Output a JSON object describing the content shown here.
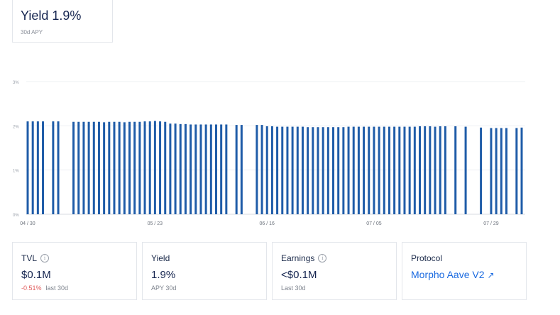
{
  "header": {
    "yield_title": "Yield 1.9%",
    "yield_sub": "30d APY"
  },
  "stats": {
    "tvl": {
      "label": "TVL",
      "value": "$0.1M",
      "change": "-0.51%",
      "period": "last 30d"
    },
    "yield": {
      "label": "Yield",
      "value": "1.9%",
      "sub": "APY 30d"
    },
    "earnings": {
      "label": "Earnings",
      "value": "<$0.1M",
      "sub": "Last 30d"
    },
    "protocol": {
      "label": "Protocol",
      "value": "Morpho Aave V2",
      "icon": "external-link-arrow-icon"
    }
  },
  "colors": {
    "bar": "#1f5ca8",
    "grid": "#eef0f3",
    "negative": "#e05a5a",
    "link": "#1a6ae0"
  },
  "chart_data": {
    "type": "bar",
    "ylim": [
      0,
      3
    ],
    "yticks": [
      "0%",
      "1%",
      "2%",
      "3%"
    ],
    "xticks": [
      {
        "index": 0,
        "label": "04 / 30"
      },
      {
        "index": 25,
        "label": "05 / 23"
      },
      {
        "index": 47,
        "label": "06 / 16"
      },
      {
        "index": 68,
        "label": "07 / 05"
      },
      {
        "index": 91,
        "label": "07 / 29"
      }
    ],
    "values": [
      2.1,
      2.1,
      2.1,
      2.1,
      null,
      2.1,
      2.1,
      null,
      null,
      2.09,
      2.09,
      2.09,
      2.09,
      2.09,
      2.09,
      2.08,
      2.09,
      2.09,
      2.09,
      2.08,
      2.09,
      2.09,
      2.09,
      2.1,
      2.1,
      2.11,
      2.1,
      2.09,
      2.05,
      2.05,
      2.04,
      2.04,
      2.03,
      2.03,
      2.03,
      2.03,
      2.03,
      2.03,
      2.03,
      2.03,
      null,
      2.02,
      2.02,
      null,
      null,
      2.02,
      2.02,
      1.99,
      1.99,
      1.98,
      1.98,
      1.98,
      1.98,
      1.98,
      1.98,
      1.97,
      1.97,
      1.97,
      1.97,
      1.97,
      1.97,
      1.97,
      1.97,
      1.98,
      1.98,
      1.98,
      1.98,
      1.98,
      1.98,
      1.98,
      1.98,
      1.98,
      1.98,
      1.98,
      1.98,
      1.98,
      1.98,
      1.99,
      1.99,
      1.99,
      1.98,
      1.99,
      1.99,
      null,
      1.99,
      null,
      1.98,
      null,
      null,
      1.96,
      null,
      1.95,
      1.95,
      1.95,
      1.95,
      null,
      1.95,
      1.96
    ]
  }
}
